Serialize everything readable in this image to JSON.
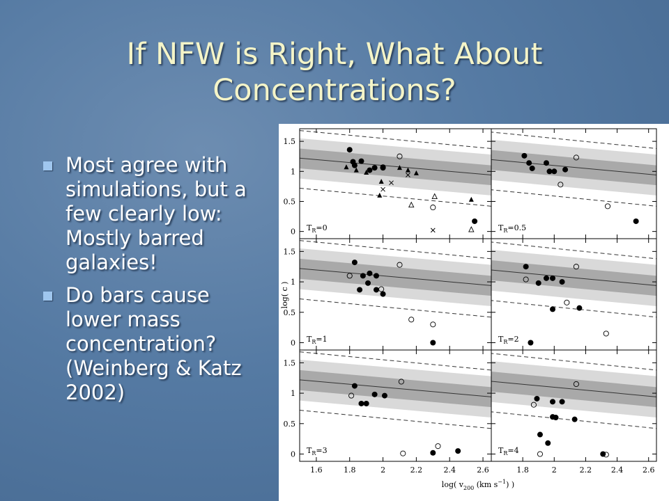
{
  "title_lines": [
    "If NFW is Right, What About",
    "Concentrations?"
  ],
  "bullets": [
    "Most agree with simulations, but a few clearly low:  Mostly barred galaxies!",
    "Do bars cause lower mass concentration? (Weinberg & Katz 2002)"
  ],
  "figure": {
    "y_label": "log( c )",
    "x_label": {
      "lead": "log( v",
      "sub": "200",
      "mid": " (km s",
      "sup": "−1",
      "tail": ") )"
    },
    "ylim": [
      -0.12,
      1.71
    ],
    "yticks": [
      0,
      0.5,
      1,
      1.5
    ],
    "xticks": [
      1.6,
      1.8,
      2,
      2.2,
      2.4,
      2.6
    ],
    "model": {
      "x": [
        1.5,
        2.65
      ],
      "dashed_upper": [
        1.68,
        1.38
      ],
      "light_upper": [
        1.55,
        1.28
      ],
      "dark_upper": [
        1.38,
        1.1
      ],
      "median": [
        1.22,
        0.94
      ],
      "dark_lower": [
        1.05,
        0.77
      ],
      "light_lower": [
        0.88,
        0.6
      ],
      "dashed_lower": [
        0.72,
        0.42
      ]
    },
    "panels": [
      {
        "label": {
          "symbol": "T",
          "sub": "R",
          "rest": "=0"
        },
        "xlim": [
          1.5,
          2.65
        ],
        "filled": {
          "x": [
            1.8,
            1.82,
            1.87,
            1.92,
            1.95,
            2.0,
            1.83,
            2.55
          ],
          "y": [
            1.36,
            1.16,
            1.17,
            1.02,
            1.06,
            1.06,
            1.1,
            0.17
          ]
        },
        "open": {
          "x": [
            2.1,
            2.0,
            2.3
          ],
          "y": [
            1.25,
            1.07,
            0.4
          ]
        },
        "triangles": {
          "x": [
            1.78,
            1.84,
            1.9,
            2.1,
            2.15,
            2.2,
            1.99,
            1.98,
            2.53
          ],
          "y": [
            1.07,
            1.02,
            0.98,
            1.06,
            1.02,
            0.97,
            0.83,
            0.6,
            0.53
          ]
        },
        "open_triangles": {
          "x": [
            2.17,
            2.31,
            2.53
          ],
          "y": [
            0.44,
            0.58,
            0.03
          ]
        },
        "crosses": {
          "x": [
            2.15,
            2.05,
            2.0,
            2.3
          ],
          "y": [
            0.94,
            0.81,
            0.7,
            0.02
          ]
        }
      },
      {
        "label": {
          "symbol": "T",
          "sub": "R",
          "rest": "=0.5"
        },
        "xlim": [
          1.6,
          2.65
        ],
        "filled": {
          "x": [
            1.81,
            1.84,
            1.95,
            1.97,
            2.0,
            2.07,
            2.52,
            1.86
          ],
          "y": [
            1.26,
            1.14,
            1.14,
            1.0,
            1.0,
            1.03,
            0.17,
            1.05
          ]
        },
        "open": {
          "x": [
            2.14,
            2.04,
            2.34
          ],
          "y": [
            1.23,
            0.78,
            0.42
          ]
        }
      },
      {
        "label": {
          "symbol": "T",
          "sub": "R",
          "rest": "=1"
        },
        "xlim": [
          1.5,
          2.65
        ],
        "filled": {
          "x": [
            1.83,
            1.88,
            1.92,
            1.96,
            1.91,
            1.86,
            1.96,
            2.0,
            2.3
          ],
          "y": [
            1.32,
            1.1,
            1.14,
            1.1,
            0.98,
            0.87,
            0.87,
            0.8,
            0.0
          ]
        },
        "open": {
          "x": [
            1.8,
            2.1,
            1.99,
            2.17,
            2.3
          ],
          "y": [
            1.1,
            1.28,
            0.88,
            0.38,
            0.3
          ]
        }
      },
      {
        "label": {
          "symbol": "T",
          "sub": "R",
          "rest": "=2"
        },
        "xlim": [
          1.6,
          2.65
        ],
        "filled": {
          "x": [
            1.82,
            1.9,
            1.95,
            1.99,
            2.05,
            1.99,
            2.16,
            1.85
          ],
          "y": [
            1.25,
            0.98,
            1.06,
            1.06,
            1.0,
            0.55,
            0.57,
            0.0
          ]
        },
        "open": {
          "x": [
            1.82,
            2.14,
            2.08,
            2.33
          ],
          "y": [
            1.04,
            1.25,
            0.66,
            0.15
          ]
        }
      },
      {
        "label": {
          "symbol": "T",
          "sub": "R",
          "rest": "=3"
        },
        "xlim": [
          1.5,
          2.65
        ],
        "filled": {
          "x": [
            1.83,
            1.87,
            1.9,
            1.95,
            2.01,
            2.3,
            2.45
          ],
          "y": [
            1.12,
            0.83,
            0.83,
            0.98,
            0.96,
            0.02,
            0.05
          ]
        },
        "open": {
          "x": [
            1.81,
            2.11,
            2.33,
            2.12
          ],
          "y": [
            0.96,
            1.19,
            0.13,
            0.01
          ]
        }
      },
      {
        "label": {
          "symbol": "T",
          "sub": "R",
          "rest": "=4"
        },
        "xlim": [
          1.6,
          2.65
        ],
        "filled": {
          "x": [
            1.89,
            1.99,
            2.05,
            1.99,
            2.01,
            2.13,
            1.91,
            1.96,
            2.31
          ],
          "y": [
            0.91,
            0.86,
            0.86,
            0.61,
            0.6,
            0.57,
            0.32,
            0.18,
            0.0
          ]
        },
        "open": {
          "x": [
            1.87,
            2.14,
            2.33,
            1.91
          ],
          "y": [
            0.81,
            1.15,
            -0.01,
            0.0
          ]
        }
      }
    ]
  }
}
